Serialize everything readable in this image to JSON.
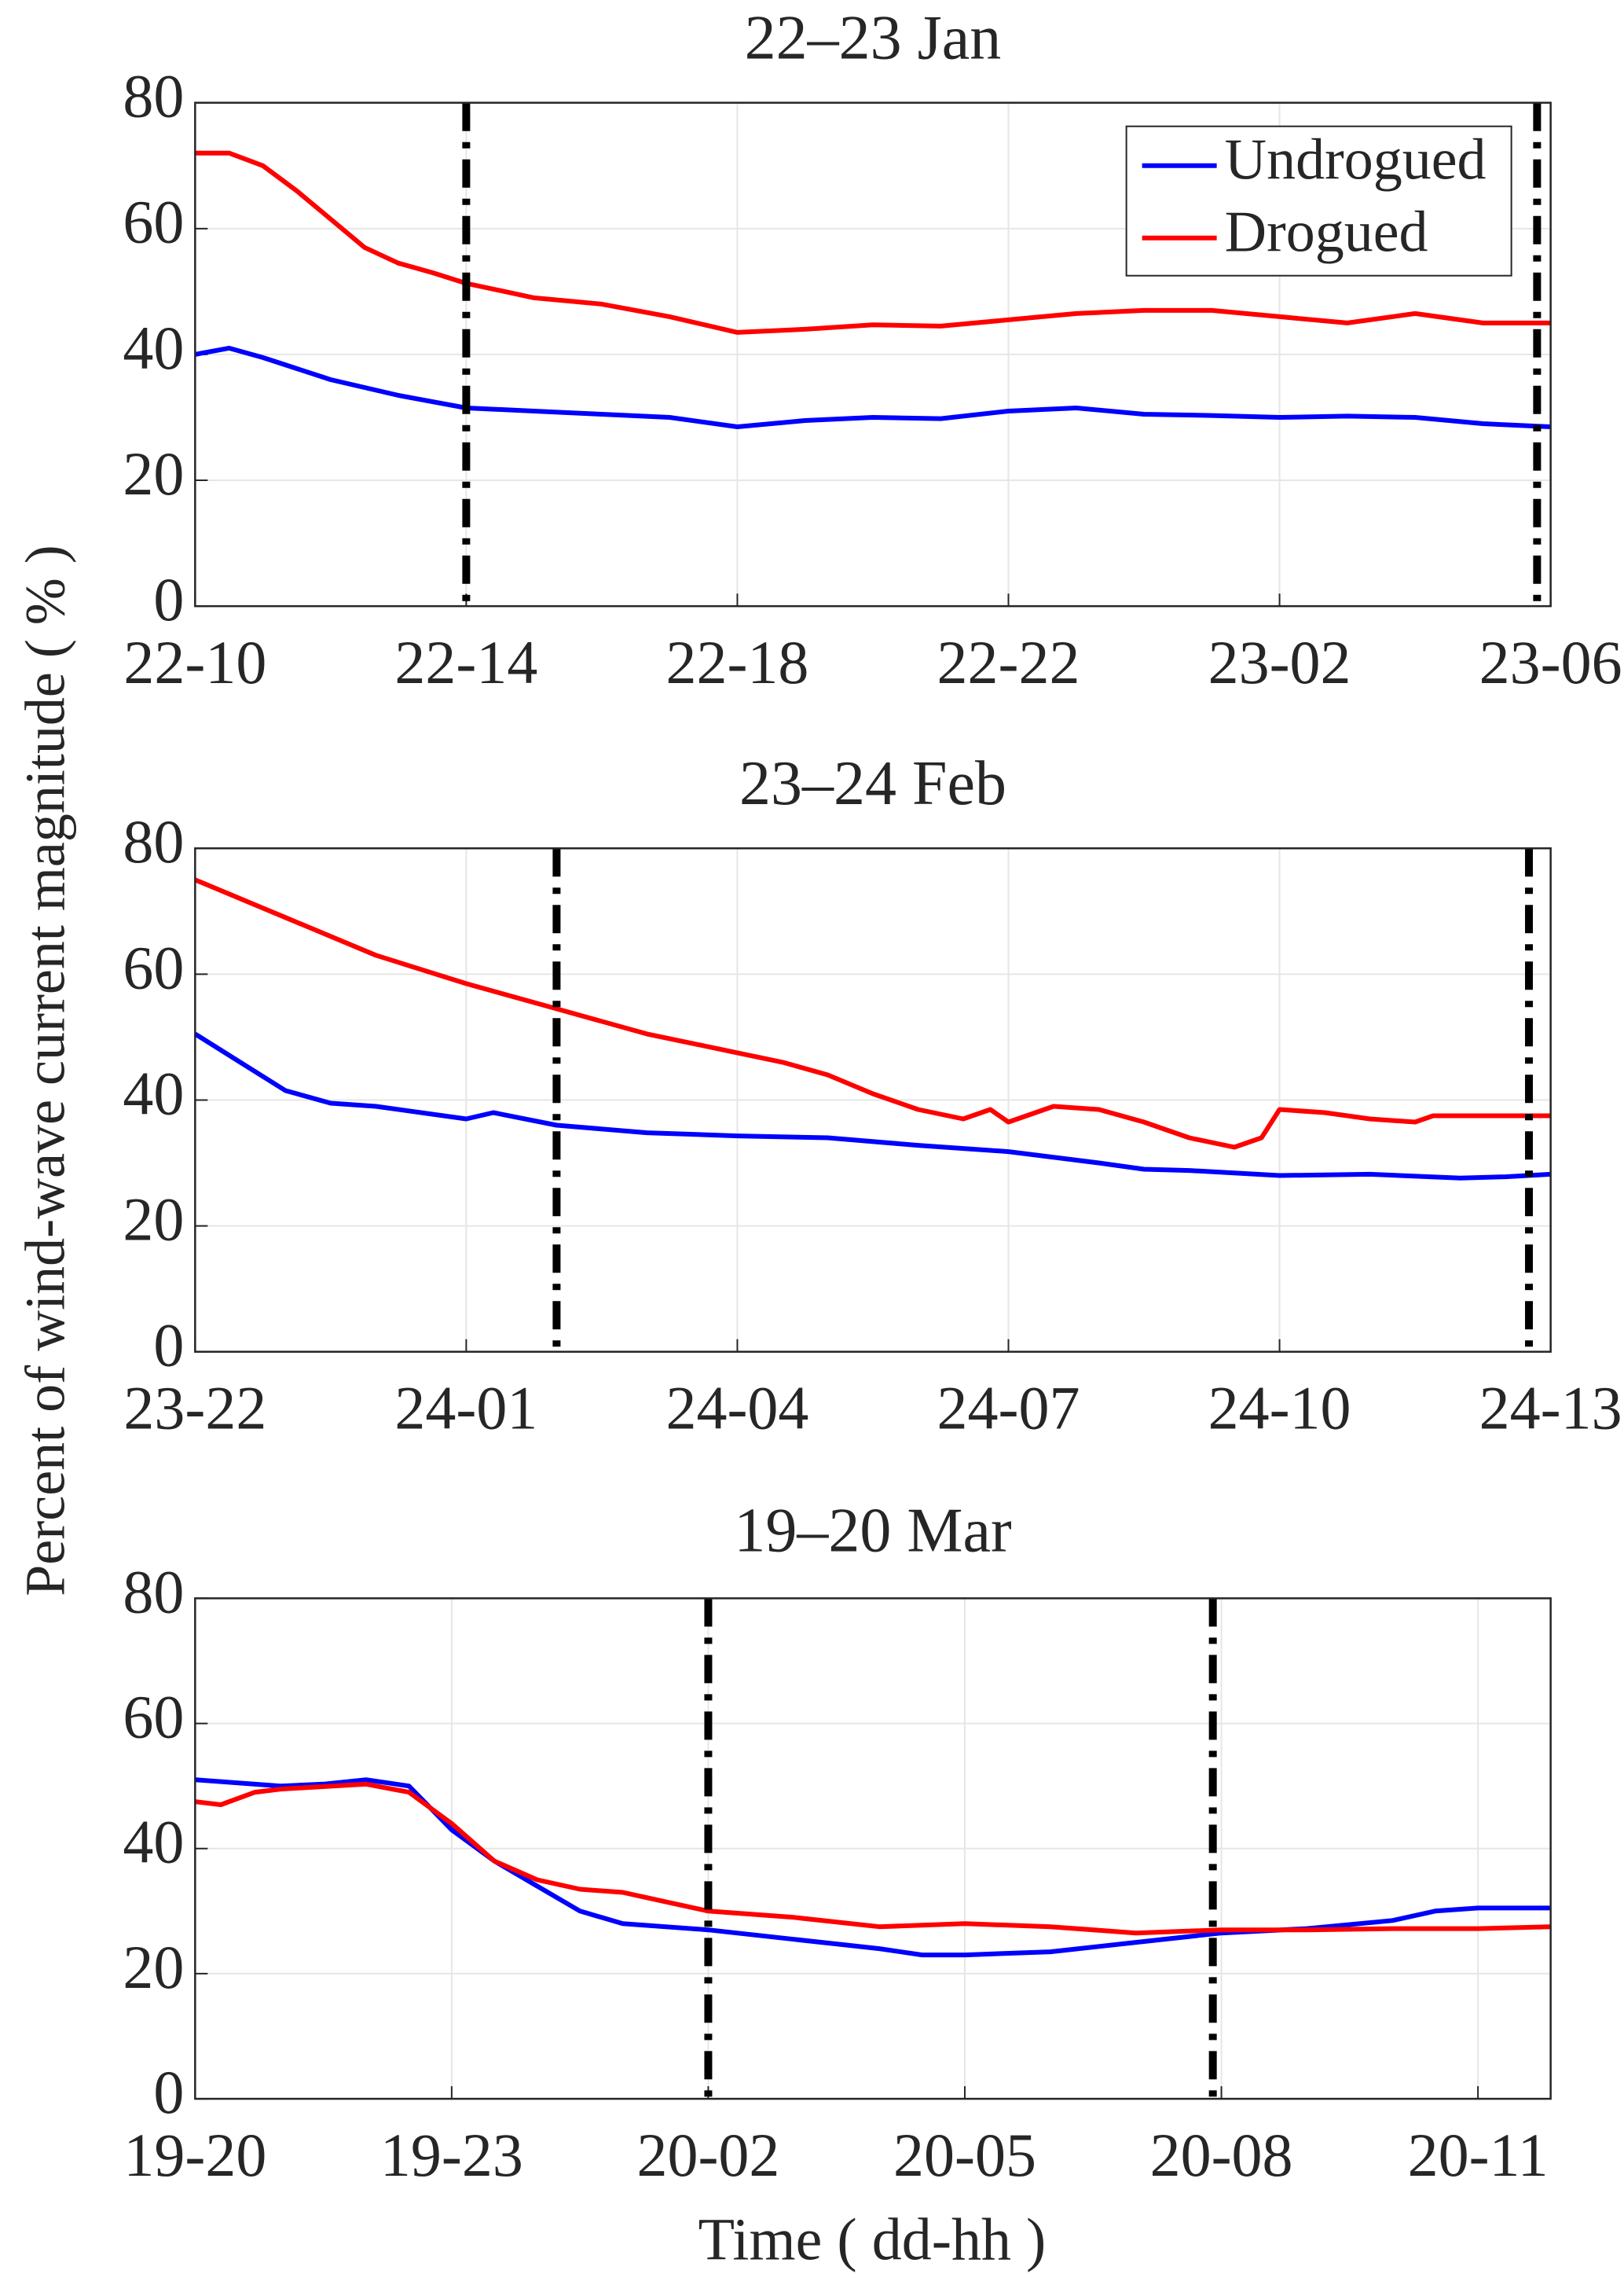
{
  "ylabel": "Percent of wind-wave current magnitude ( % )",
  "xlabel": "Time ( dd-hh )",
  "chart_data": [
    {
      "type": "line",
      "title": "22–23 Jan",
      "legend": "upper right",
      "grid": true,
      "xlim": [
        10,
        30
      ],
      "xticks": [
        {
          "value": 10,
          "label": "22-10"
        },
        {
          "value": 14,
          "label": "22-14"
        },
        {
          "value": 18,
          "label": "22-18"
        },
        {
          "value": 22,
          "label": "22-22"
        },
        {
          "value": 26,
          "label": "23-02"
        },
        {
          "value": 30,
          "label": "23-06"
        }
      ],
      "ylim": [
        0,
        80
      ],
      "yticks": [
        0,
        20,
        40,
        60,
        80
      ],
      "vlines": [
        14,
        29.8
      ],
      "series": [
        {
          "name": "Undrogued",
          "color": "#0000ff",
          "x": [
            10,
            10.5,
            11,
            12,
            13,
            14,
            15,
            16,
            17,
            18,
            19,
            20,
            21,
            22,
            23,
            24,
            25,
            26,
            27,
            28,
            29,
            30
          ],
          "values": [
            40,
            41,
            39.5,
            36,
            33.5,
            31.5,
            31,
            30.5,
            30,
            28.5,
            29.5,
            30,
            29.8,
            31,
            31.5,
            30.5,
            30.3,
            30,
            30.2,
            30,
            29,
            28.5
          ]
        },
        {
          "name": "Drogued",
          "color": "#ff0000",
          "x": [
            10,
            10.5,
            11,
            11.5,
            12,
            12.5,
            13,
            13.5,
            14,
            15,
            16,
            17,
            18,
            19,
            20,
            21,
            22,
            23,
            24,
            25,
            26,
            27,
            28,
            29,
            30
          ],
          "values": [
            72,
            72,
            70,
            66,
            61.5,
            57,
            54.5,
            53,
            51.3,
            49,
            48,
            46,
            43.5,
            44,
            44.7,
            44.5,
            45.5,
            46.5,
            47,
            47,
            46,
            45,
            46.5,
            45,
            45
          ]
        }
      ]
    },
    {
      "type": "line",
      "title": "23–24 Feb",
      "grid": true,
      "xlim": [
        22,
        37
      ],
      "xticks": [
        {
          "value": 22,
          "label": "23-22"
        },
        {
          "value": 25,
          "label": "24-01"
        },
        {
          "value": 28,
          "label": "24-04"
        },
        {
          "value": 31,
          "label": "24-07"
        },
        {
          "value": 34,
          "label": "24-10"
        },
        {
          "value": 37,
          "label": "24-13"
        }
      ],
      "ylim": [
        0,
        80
      ],
      "yticks": [
        0,
        20,
        40,
        60,
        80
      ],
      "vlines": [
        26,
        36.76
      ],
      "series": [
        {
          "name": "Undrogued",
          "color": "#0000ff",
          "x": [
            22,
            22.5,
            23,
            23.5,
            24,
            25,
            25.3,
            26,
            27,
            28,
            29,
            30,
            31,
            32,
            32.5,
            33,
            34,
            35,
            36,
            36.5,
            37
          ],
          "values": [
            50.5,
            46,
            41.5,
            39.5,
            39,
            37,
            38,
            36,
            34.8,
            34.3,
            34,
            32.8,
            31.8,
            30,
            29,
            28.8,
            28,
            28.2,
            27.6,
            27.8,
            28.2
          ]
        },
        {
          "name": "Drogued",
          "color": "#ff0000",
          "x": [
            22,
            23,
            24,
            25,
            26,
            27,
            28,
            28.5,
            29,
            29.5,
            30,
            30.5,
            30.8,
            31,
            31.5,
            32,
            32.5,
            33,
            33.5,
            33.8,
            34,
            34.5,
            35,
            35.5,
            35.7,
            36,
            37
          ],
          "values": [
            75,
            69,
            63,
            58.5,
            54.5,
            50.5,
            47.5,
            46,
            44,
            41,
            38.5,
            37,
            38.5,
            36.5,
            39,
            38.5,
            36.5,
            34,
            32.5,
            34,
            38.5,
            38,
            37,
            36.5,
            37.5,
            37.5,
            37.5
          ]
        }
      ]
    },
    {
      "type": "line",
      "title": "19–20 Mar",
      "grid": true,
      "xlim": [
        20,
        35.85
      ],
      "xticks": [
        {
          "value": 20,
          "label": "19-20"
        },
        {
          "value": 23,
          "label": "19-23"
        },
        {
          "value": 26,
          "label": "20-02"
        },
        {
          "value": 29,
          "label": "20-05"
        },
        {
          "value": 32,
          "label": "20-08"
        },
        {
          "value": 35,
          "label": "20-11"
        }
      ],
      "ylim": [
        0,
        80
      ],
      "yticks": [
        0,
        20,
        40,
        60,
        80
      ],
      "vlines": [
        26,
        31.9
      ],
      "series": [
        {
          "name": "Undrogued",
          "color": "#0000ff",
          "x": [
            20,
            21,
            21.5,
            22,
            22.5,
            23,
            23.5,
            24,
            24.5,
            25,
            26,
            27,
            28,
            28.5,
            29,
            30,
            31,
            32,
            33,
            34,
            34.5,
            35,
            35.85
          ],
          "values": [
            51,
            50,
            50.3,
            51,
            50,
            43,
            38,
            34,
            30,
            28,
            27,
            25.5,
            24,
            23,
            23,
            23.5,
            25,
            26.5,
            27.2,
            28.5,
            30,
            30.5,
            30.5
          ]
        },
        {
          "name": "Drogued",
          "color": "#ff0000",
          "x": [
            20,
            20.3,
            20.7,
            21,
            22,
            22.5,
            23,
            23.5,
            24,
            24.5,
            25,
            25.5,
            26,
            27,
            28,
            29,
            30,
            31,
            32,
            33,
            34,
            35,
            35.85
          ],
          "values": [
            47.5,
            47,
            49,
            49.5,
            50.3,
            49,
            44,
            38,
            35,
            33.5,
            33,
            31.5,
            30,
            29,
            27.5,
            28,
            27.5,
            26.5,
            27,
            27,
            27.2,
            27.2,
            27.5
          ]
        }
      ]
    }
  ]
}
